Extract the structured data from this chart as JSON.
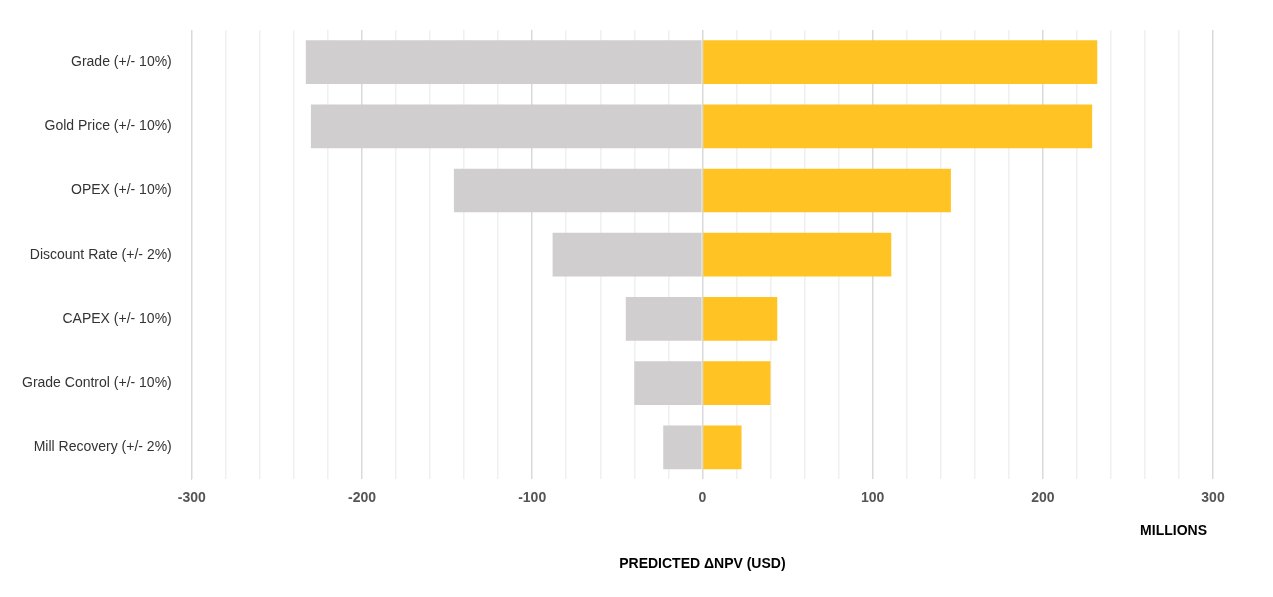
{
  "chart_data": {
    "type": "bar",
    "orientation": "horizontal",
    "stacked": true,
    "xlabel": "PREDICTED ΔNPV (USD)",
    "annotations": [
      "MILLIONS"
    ],
    "categories": [
      "Grade (+/- 10%)",
      "Gold Price (+/- 10%)",
      "OPEX (+/- 10%)",
      "Discount Rate (+/- 2%)",
      "CAPEX (+/- 10%)",
      "Grade Control (+/- 10%)",
      "Mill Recovery (+/- 2%)"
    ],
    "series": [
      {
        "color": "#d0cece",
        "values": [
          -233,
          -230,
          -146,
          -88,
          -45,
          -40,
          -23
        ]
      },
      {
        "color": "#ffc423",
        "values": [
          232,
          229,
          146,
          111,
          44,
          40,
          23
        ]
      }
    ],
    "xlim": [
      -300,
      300
    ],
    "xticks": [
      -300,
      {
        "value": -280,
        "label": null
      },
      {
        "value": -260,
        "label": null
      },
      {
        "value": -240,
        "label": null
      },
      {
        "value": -220,
        "label": null
      },
      -200,
      {
        "value": -180,
        "label": null
      },
      {
        "value": -160,
        "label": null
      },
      {
        "value": -140,
        "label": null
      },
      {
        "value": -120,
        "label": null
      },
      -100,
      {
        "value": -80,
        "label": null
      },
      {
        "value": -60,
        "label": null
      },
      {
        "value": -40,
        "label": null
      },
      {
        "value": -20,
        "label": null
      },
      0,
      {
        "value": 20,
        "label": null
      },
      {
        "value": 40,
        "label": null
      },
      {
        "value": 60,
        "label": null
      },
      {
        "value": 80,
        "label": null
      },
      100,
      {
        "value": 120,
        "label": null
      },
      {
        "value": 140,
        "label": null
      },
      {
        "value": 160,
        "label": null
      },
      {
        "value": 180,
        "label": null
      },
      200,
      {
        "value": 220,
        "label": null
      },
      {
        "value": 240,
        "label": null
      },
      {
        "value": 260,
        "label": null
      },
      {
        "value": 280,
        "label": null
      },
      300
    ],
    "grid": "x",
    "legend": false
  }
}
